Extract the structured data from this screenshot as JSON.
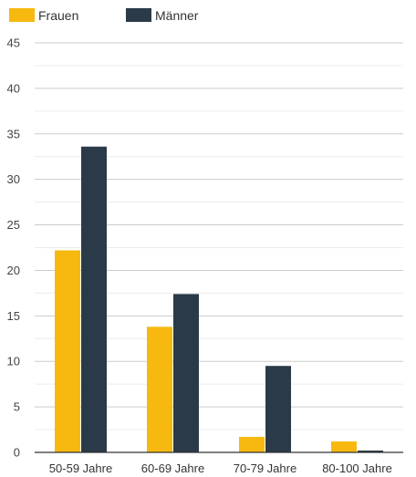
{
  "chart_data": {
    "type": "bar",
    "title": "",
    "xlabel": "",
    "ylabel": "",
    "ylim": [
      0,
      45
    ],
    "yticks": [
      0,
      5,
      10,
      15,
      20,
      25,
      30,
      35,
      40,
      45
    ],
    "grid": true,
    "legend_position": "top-left",
    "categories": [
      "50-59 Jahre",
      "60-69 Jahre",
      "70-79 Jahre",
      "80-100 Jahre"
    ],
    "series": [
      {
        "name": "Frauen",
        "color": "#f7b90f",
        "values": [
          22.2,
          13.8,
          1.7,
          1.2
        ]
      },
      {
        "name": "Männer",
        "color": "#2b3a48",
        "values": [
          33.6,
          17.4,
          9.5,
          0.2
        ]
      }
    ]
  }
}
